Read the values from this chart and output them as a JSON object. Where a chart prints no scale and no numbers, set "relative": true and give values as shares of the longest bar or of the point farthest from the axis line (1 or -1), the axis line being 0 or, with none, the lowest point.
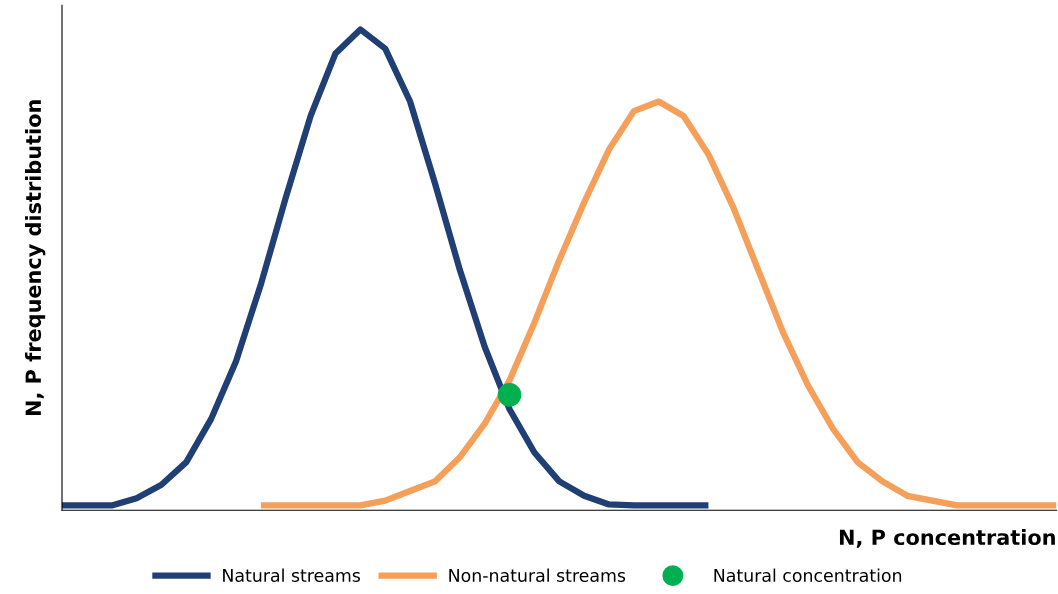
{
  "chart_data": {
    "type": "line",
    "relative": true,
    "xlabel": "N, P concentration",
    "ylabel": "N, P frequency distribution",
    "categories": [
      null,
      null,
      null,
      null,
      null,
      null,
      null,
      null,
      null,
      null,
      null,
      null,
      null,
      null,
      null,
      null,
      null,
      null,
      null,
      null,
      null,
      null,
      null,
      null,
      null,
      null,
      null,
      null,
      null,
      null,
      null,
      null,
      null,
      null,
      null,
      null,
      null,
      null,
      null,
      null,
      null
    ],
    "series": [
      {
        "name": "Natural streams",
        "color": "#203f74",
        "values": [
          0.01,
          0.01,
          0.01,
          0.025,
          0.053,
          0.1,
          0.19,
          0.31,
          0.47,
          0.65,
          0.82,
          0.95,
          1.0,
          0.96,
          0.85,
          0.68,
          0.5,
          0.34,
          0.21,
          0.12,
          0.06,
          0.03,
          0.012,
          0.01,
          0.01,
          0.01,
          0.01,
          null,
          null,
          null,
          null,
          null,
          null,
          null,
          null,
          null,
          null,
          null,
          null,
          null,
          null
        ]
      },
      {
        "name": "Non-natural streams",
        "color": "#f5a05a",
        "values": [
          null,
          null,
          null,
          null,
          null,
          null,
          null,
          null,
          0.01,
          0.01,
          0.01,
          0.01,
          0.01,
          0.02,
          0.04,
          0.06,
          0.11,
          0.18,
          0.27,
          0.39,
          0.52,
          0.64,
          0.75,
          0.83,
          0.85,
          0.82,
          0.74,
          0.63,
          0.5,
          0.37,
          0.26,
          0.17,
          0.1,
          0.06,
          0.03,
          0.02,
          0.01,
          0.01,
          0.01,
          0.01,
          0.01
        ]
      },
      {
        "name": "Natural concentration",
        "marker": "circle",
        "color": "#00b050",
        "values": [
          null,
          null,
          null,
          null,
          null,
          null,
          null,
          null,
          null,
          null,
          null,
          null,
          null,
          null,
          null,
          null,
          null,
          null,
          0.24,
          null,
          null,
          null,
          null,
          null,
          null,
          null,
          null,
          null,
          null,
          null,
          null,
          null,
          null,
          null,
          null,
          null,
          null,
          null,
          null,
          null,
          null
        ]
      }
    ],
    "legend": "bottom",
    "grid": false
  }
}
